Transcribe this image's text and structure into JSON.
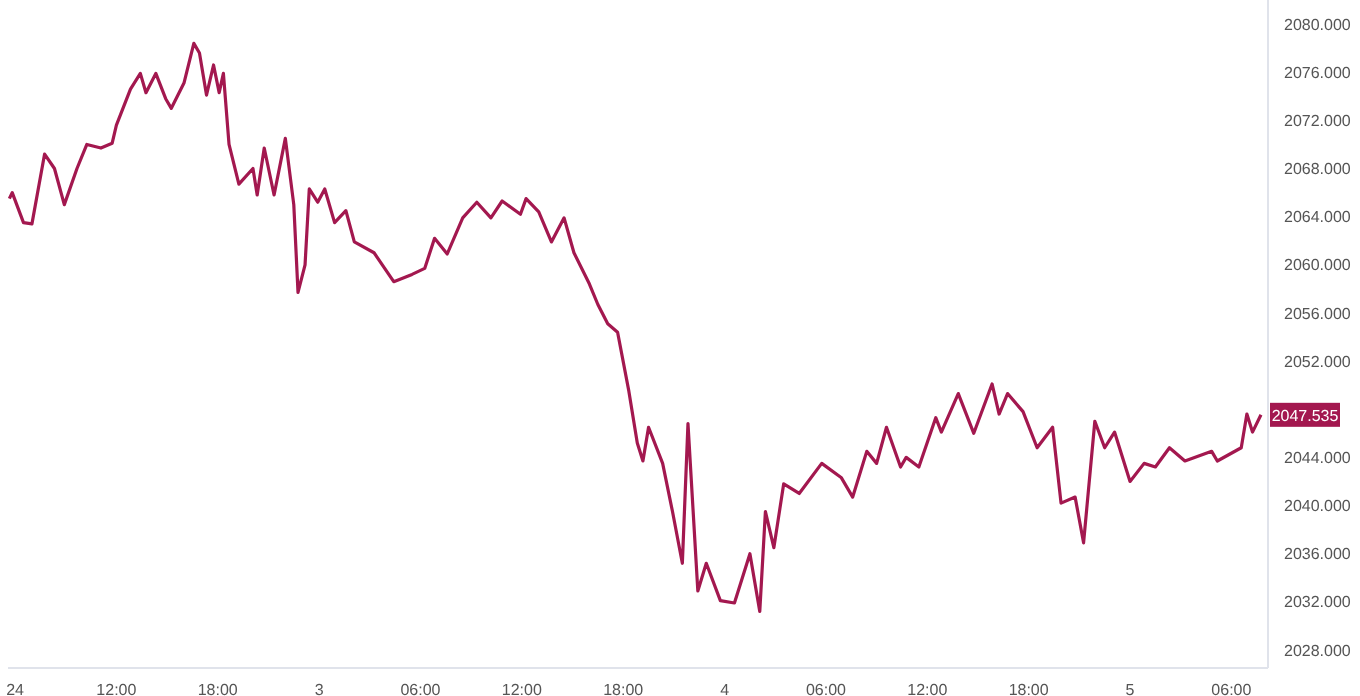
{
  "chart_data": {
    "type": "line",
    "legend": false,
    "grid": false,
    "marker": "none",
    "line_style": "solid",
    "xlim": [
      "--01-02T05:35",
      "--01-05T08:10"
    ],
    "xticks": [
      {
        "value": "--01-02T06:00",
        "label": "24"
      },
      {
        "value": "--01-02T12:00",
        "label": "12:00"
      },
      {
        "value": "--01-02T18:00",
        "label": "18:00"
      },
      {
        "value": "--01-03",
        "label": "3"
      },
      {
        "value": "--01-03T06:00",
        "label": "06:00"
      },
      {
        "value": "--01-03T12:00",
        "label": "12:00"
      },
      {
        "value": "--01-03T18:00",
        "label": "18:00"
      },
      {
        "value": "--01-04",
        "label": "4"
      },
      {
        "value": "--01-04T06:00",
        "label": "06:00"
      },
      {
        "value": "--01-04T12:00",
        "label": "12:00"
      },
      {
        "value": "--01-04T18:00",
        "label": "18:00"
      },
      {
        "value": "--01-05",
        "label": "5"
      },
      {
        "value": "--01-05T06:00",
        "label": "06:00"
      }
    ],
    "ylim": [
      2026.5,
      2082
    ],
    "yticks": [
      {
        "value": 2028,
        "label": "2028.000"
      },
      {
        "value": 2032,
        "label": "2032.000"
      },
      {
        "value": 2036,
        "label": "2036.000"
      },
      {
        "value": 2040,
        "label": "2040.000"
      },
      {
        "value": 2044,
        "label": "2044.000"
      },
      {
        "value": 2052,
        "label": "2052.000"
      },
      {
        "value": 2056,
        "label": "2056.000"
      },
      {
        "value": 2060,
        "label": "2060.000"
      },
      {
        "value": 2064,
        "label": "2064.000"
      },
      {
        "value": 2068,
        "label": "2068.000"
      },
      {
        "value": 2072,
        "label": "2072.000"
      },
      {
        "value": 2076,
        "label": "2076.000"
      },
      {
        "value": 2080,
        "label": "2080.000"
      }
    ],
    "annotations": [
      {
        "text": "2047.535",
        "y": 2047.535
      }
    ],
    "series": [
      {
        "color": "#a3184f",
        "x": [
          "--01-02T05:40",
          "--01-02T05:50",
          "--01-02T06:30",
          "--01-02T07:00",
          "--01-02T07:45",
          "--01-02T08:20",
          "--01-02T08:55",
          "--01-02T09:40",
          "--01-02T10:15",
          "--01-02T11:05",
          "--01-02T11:45",
          "--01-02T12:00",
          "--01-02T12:50",
          "--01-02T13:25",
          "--01-02T13:45",
          "--01-02T14:20",
          "--01-02T14:55",
          "--01-02T15:15",
          "--01-02T16:00",
          "--01-02T16:35",
          "--01-02T16:55",
          "--01-02T17:20",
          "--01-02T17:45",
          "--01-02T18:05",
          "--01-02T18:20",
          "--01-02T18:40",
          "--01-02T19:15",
          "--01-02T20:05",
          "--01-02T20:20",
          "--01-02T20:45",
          "--01-02T21:20",
          "--01-02T22:00",
          "--01-02T22:30",
          "--01-02T22:45",
          "--01-02T23:10",
          "--01-02T23:25",
          "--01-02T23:55",
          "--01-03T00:20",
          "--01-03T00:55",
          "--01-03T01:35",
          "--01-03T02:05",
          "--01-03T03:15",
          "--01-03T04:25",
          "--01-03T05:30",
          "--01-03T06:15",
          "--01-03T06:50",
          "--01-03T07:35",
          "--01-03T08:30",
          "--01-03T09:20",
          "--01-03T10:10",
          "--01-03T10:50",
          "--01-03T11:55",
          "--01-03T12:15",
          "--01-03T13:00",
          "--01-03T13:45",
          "--01-03T14:30",
          "--01-03T15:05",
          "--01-03T16:00",
          "--01-03T16:30",
          "--01-03T17:05",
          "--01-03T17:40",
          "--01-03T18:20",
          "--01-03T18:50",
          "--01-03T19:10",
          "--01-03T19:30",
          "--01-03T20:20",
          "--01-03T20:55",
          "--01-03T21:30",
          "--01-03T21:50",
          "--01-03T22:25",
          "--01-03T22:55",
          "--01-03T23:45",
          "--01-04T00:35",
          "--01-04T01:30",
          "--01-04T02:05",
          "--01-04T02:25",
          "--01-04T02:55",
          "--01-04T03:30",
          "--01-04T04:25",
          "--01-04T05:45",
          "--01-04T06:55",
          "--01-04T07:35",
          "--01-04T08:25",
          "--01-04T09:00",
          "--01-04T09:35",
          "--01-04T10:25",
          "--01-04T10:45",
          "--01-04T11:30",
          "--01-04T12:30",
          "--01-04T12:50",
          "--01-04T13:50",
          "--01-04T14:45",
          "--01-04T15:50",
          "--01-04T16:15",
          "--01-04T16:45",
          "--01-04T17:40",
          "--01-04T18:30",
          "--01-04T19:25",
          "--01-04T19:55",
          "--01-04T20:45",
          "--01-04T21:15",
          "--01-04T21:55",
          "--01-04T22:30",
          "--01-04T23:05",
          "--01-05T00:00",
          "--01-05T00:50",
          "--01-05T01:30",
          "--01-05T02:20",
          "--01-05T03:15",
          "--01-05T04:50",
          "--01-05T05:10",
          "--01-05T06:35",
          "--01-05T06:55",
          "--01-05T07:15",
          "--01-05T07:45"
        ],
        "values": [
          2065.5,
          2066.0,
          2063.5,
          2063.4,
          2069.2,
          2068.0,
          2065.0,
          2068.0,
          2070.0,
          2069.7,
          2070.1,
          2071.6,
          2074.6,
          2075.9,
          2074.3,
          2075.9,
          2073.8,
          2073.0,
          2075.1,
          2078.4,
          2077.6,
          2074.1,
          2076.6,
          2074.3,
          2075.9,
          2070.0,
          2066.7,
          2068.0,
          2065.8,
          2069.7,
          2065.8,
          2070.5,
          2065.0,
          2057.7,
          2060.0,
          2066.3,
          2065.2,
          2066.3,
          2063.5,
          2064.5,
          2061.9,
          2061.0,
          2058.6,
          2059.2,
          2059.7,
          2062.2,
          2060.9,
          2063.9,
          2065.2,
          2063.9,
          2065.3,
          2064.2,
          2065.5,
          2064.4,
          2061.9,
          2063.9,
          2061.0,
          2058.4,
          2056.7,
          2055.1,
          2054.4,
          2049.5,
          2045.2,
          2043.7,
          2046.5,
          2043.5,
          2039.5,
          2035.2,
          2046.8,
          2032.9,
          2035.2,
          2032.1,
          2031.9,
          2036.0,
          2031.2,
          2039.5,
          2036.5,
          2041.8,
          2041.0,
          2043.5,
          2042.3,
          2040.7,
          2044.5,
          2043.5,
          2046.5,
          2043.2,
          2044.0,
          2043.2,
          2047.3,
          2046.1,
          2049.3,
          2046.0,
          2050.1,
          2047.6,
          2049.3,
          2047.8,
          2044.8,
          2046.5,
          2040.2,
          2040.7,
          2036.9,
          2047.0,
          2044.8,
          2046.1,
          2042.0,
          2043.5,
          2043.2,
          2044.8,
          2043.7,
          2044.5,
          2043.7,
          2044.8,
          2047.6,
          2046.1,
          2047.535
        ]
      }
    ]
  }
}
